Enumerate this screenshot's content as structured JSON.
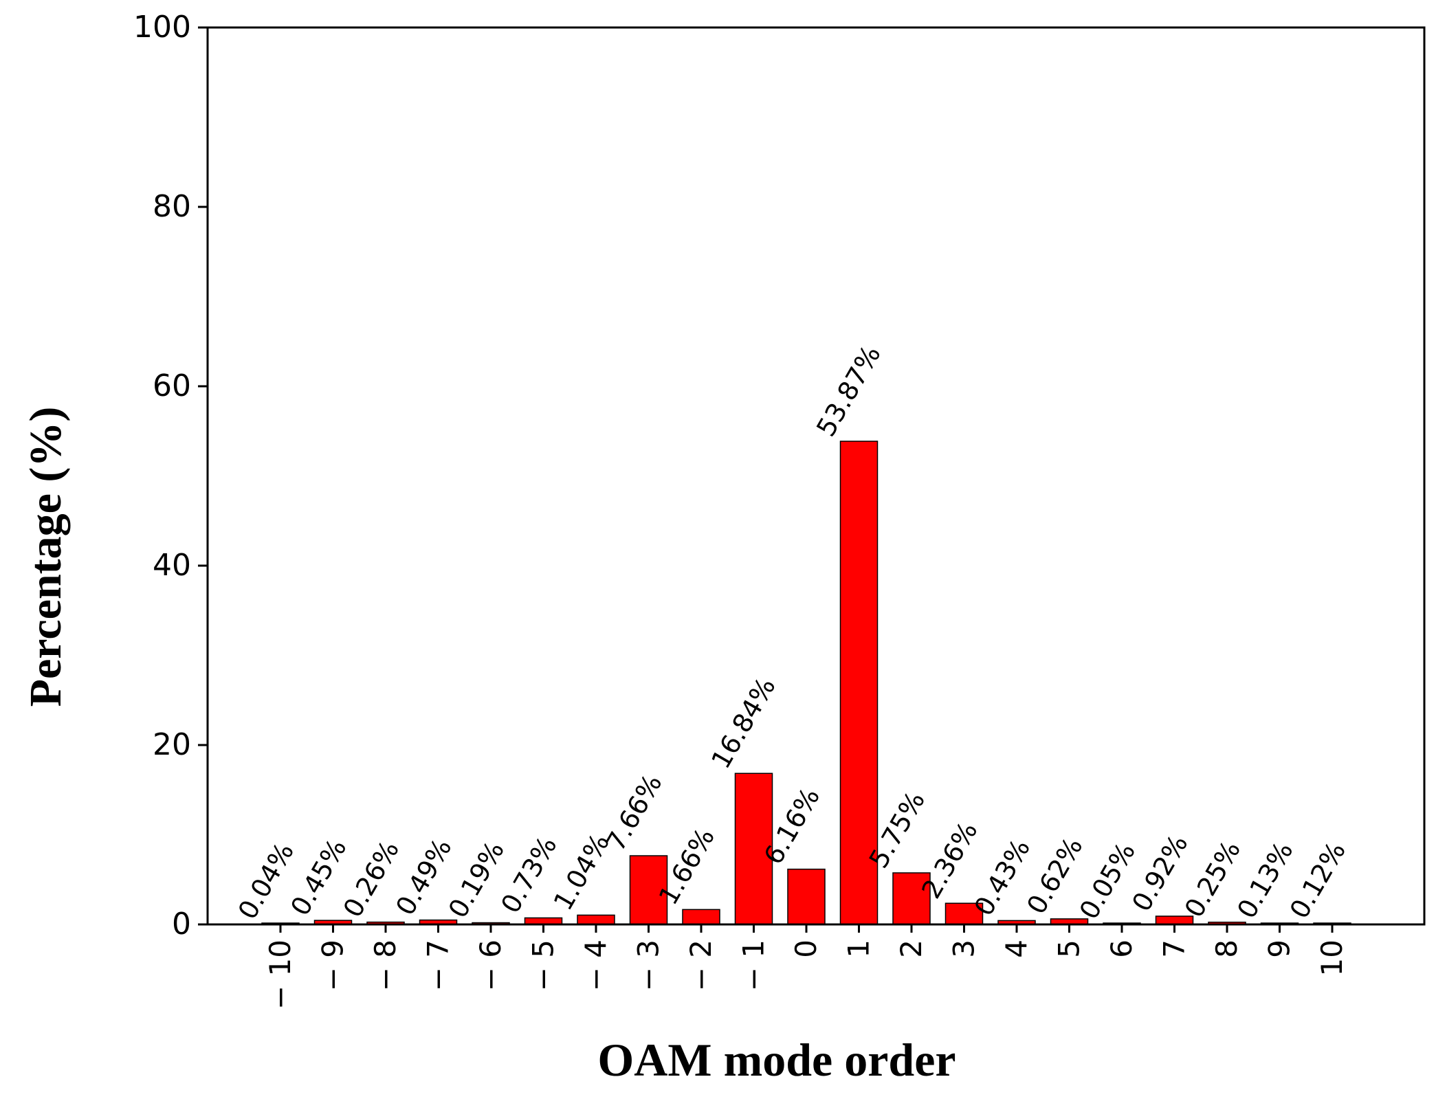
{
  "chart_data": {
    "type": "bar",
    "title": "",
    "xlabel": "OAM mode order",
    "ylabel": "Percentage (%)",
    "categories": [
      "-10",
      "-9",
      "-8",
      "-7",
      "-6",
      "-5",
      "-4",
      "-3",
      "-2",
      "-1",
      "0",
      "1",
      "2",
      "3",
      "4",
      "5",
      "6",
      "7",
      "8",
      "9",
      "10"
    ],
    "tick_labels": [
      "− 10",
      "− 9",
      "− 8",
      "− 7",
      "− 6",
      "− 5",
      "− 4",
      "− 3",
      "− 2",
      "− 1",
      "0",
      "1",
      "2",
      "3",
      "4",
      "5",
      "6",
      "7",
      "8",
      "9",
      "10"
    ],
    "values": [
      0.04,
      0.45,
      0.26,
      0.49,
      0.19,
      0.73,
      1.04,
      7.66,
      1.66,
      16.84,
      6.16,
      53.87,
      5.75,
      2.36,
      0.43,
      0.62,
      0.05,
      0.92,
      0.25,
      0.13,
      0.12
    ],
    "data_labels": [
      "0.04%",
      "0.45%",
      "0.26%",
      "0.49%",
      "0.19%",
      "0.73%",
      "1.04%",
      "7.66%",
      "1.66%",
      "16.84%",
      "6.16%",
      "53.87%",
      "5.75%",
      "2.36%",
      "0.43%",
      "0.62%",
      "0.05%",
      "0.92%",
      "0.25%",
      "0.13%",
      "0.12%"
    ],
    "yticks": [
      0,
      20,
      40,
      60,
      80,
      100
    ],
    "ylim": [
      0,
      100
    ],
    "grid": false,
    "bar_color": "#ff0000",
    "bar_edge_color": "#000000"
  }
}
